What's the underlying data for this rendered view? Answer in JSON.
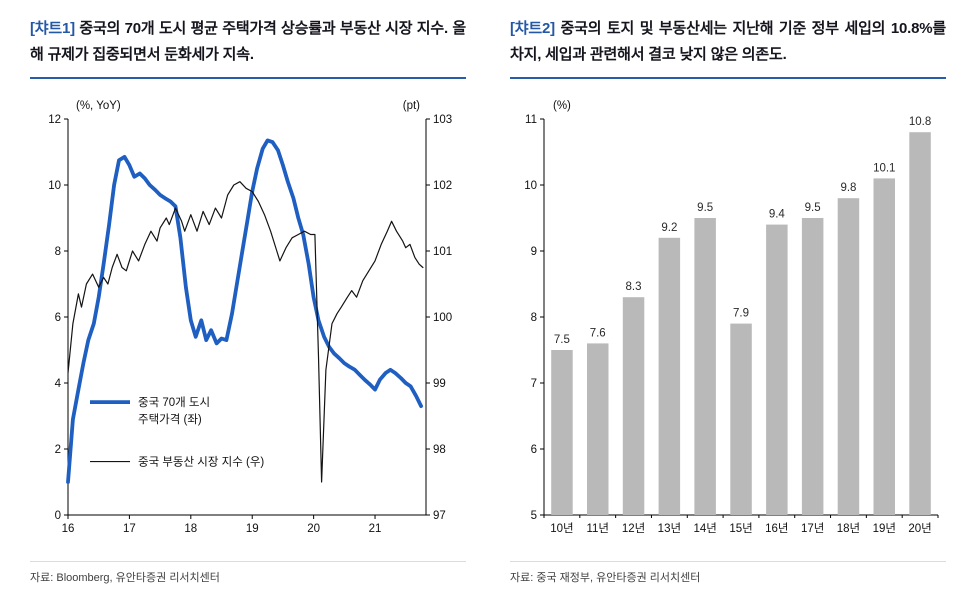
{
  "panels": [
    {
      "title_prefix": "[챠트1]",
      "title_rest": " 중국의 70개 도시 평균 주택가격 상승률과 부동산 시장 지수. 올해 규제가 집중되면서 둔화세가 지속.",
      "source": "자료: Bloomberg, 유안타증권 리서치센터"
    },
    {
      "title_prefix": "[챠트2]",
      "title_rest": " 중국의 토지 및 부동산세는 지난해 기준 정부 세입의 10.8%를 차지, 세입과 관련해서 결코 낮지 않은 의존도.",
      "source": "자료: 중국 재정부, 유안타증권 리서치센터"
    }
  ],
  "chart_data": [
    {
      "type": "line",
      "left_axis_label": "(%, YoY)",
      "right_axis_label": "(pt)",
      "x_range": [
        16,
        21.83
      ],
      "x_ticks": [
        16,
        17,
        18,
        19,
        20,
        21
      ],
      "left_ylim": [
        0,
        12
      ],
      "left_yticks": [
        0,
        2,
        4,
        6,
        8,
        10,
        12
      ],
      "right_ylim": [
        97,
        103
      ],
      "right_yticks": [
        97,
        98,
        99,
        100,
        101,
        102,
        103
      ],
      "series": [
        {
          "id": "house-price",
          "name": "중국 70개 도시 주택가격 (좌)",
          "axis": "left",
          "color": "#1e5fc1",
          "width": 3.8,
          "points": [
            [
              16.0,
              1.0
            ],
            [
              16.08,
              2.9
            ],
            [
              16.17,
              3.8
            ],
            [
              16.25,
              4.6
            ],
            [
              16.33,
              5.3
            ],
            [
              16.42,
              5.8
            ],
            [
              16.5,
              6.6
            ],
            [
              16.58,
              7.6
            ],
            [
              16.67,
              8.8
            ],
            [
              16.75,
              10.0
            ],
            [
              16.83,
              10.75
            ],
            [
              16.92,
              10.85
            ],
            [
              17.0,
              10.6
            ],
            [
              17.08,
              10.25
            ],
            [
              17.17,
              10.35
            ],
            [
              17.25,
              10.2
            ],
            [
              17.33,
              10.0
            ],
            [
              17.42,
              9.85
            ],
            [
              17.5,
              9.7
            ],
            [
              17.58,
              9.6
            ],
            [
              17.67,
              9.5
            ],
            [
              17.75,
              9.35
            ],
            [
              17.83,
              8.4
            ],
            [
              17.92,
              6.9
            ],
            [
              18.0,
              5.9
            ],
            [
              18.08,
              5.4
            ],
            [
              18.17,
              5.9
            ],
            [
              18.25,
              5.3
            ],
            [
              18.33,
              5.6
            ],
            [
              18.42,
              5.2
            ],
            [
              18.5,
              5.35
            ],
            [
              18.58,
              5.3
            ],
            [
              18.67,
              6.1
            ],
            [
              18.75,
              7.0
            ],
            [
              18.83,
              7.9
            ],
            [
              18.92,
              8.9
            ],
            [
              19.0,
              9.8
            ],
            [
              19.08,
              10.5
            ],
            [
              19.17,
              11.1
            ],
            [
              19.25,
              11.35
            ],
            [
              19.33,
              11.3
            ],
            [
              19.42,
              11.05
            ],
            [
              19.5,
              10.6
            ],
            [
              19.58,
              10.1
            ],
            [
              19.67,
              9.6
            ],
            [
              19.75,
              9.0
            ],
            [
              19.83,
              8.5
            ],
            [
              19.92,
              7.6
            ],
            [
              20.0,
              6.6
            ],
            [
              20.08,
              5.9
            ],
            [
              20.17,
              5.4
            ],
            [
              20.25,
              5.1
            ],
            [
              20.33,
              4.9
            ],
            [
              20.42,
              4.75
            ],
            [
              20.5,
              4.6
            ],
            [
              20.58,
              4.5
            ],
            [
              20.67,
              4.4
            ],
            [
              20.75,
              4.25
            ],
            [
              20.83,
              4.1
            ],
            [
              20.92,
              3.95
            ],
            [
              21.0,
              3.8
            ],
            [
              21.08,
              4.1
            ],
            [
              21.17,
              4.3
            ],
            [
              21.25,
              4.4
            ],
            [
              21.33,
              4.3
            ],
            [
              21.42,
              4.15
            ],
            [
              21.5,
              4.0
            ],
            [
              21.58,
              3.9
            ],
            [
              21.67,
              3.6
            ],
            [
              21.75,
              3.3
            ]
          ]
        },
        {
          "id": "property-index",
          "name": "중국 부동산 시장 지수 (우)",
          "axis": "right",
          "color": "#141414",
          "width": 1.2,
          "points": [
            [
              16.0,
              99.15
            ],
            [
              16.08,
              99.9
            ],
            [
              16.17,
              100.35
            ],
            [
              16.22,
              100.15
            ],
            [
              16.3,
              100.5
            ],
            [
              16.4,
              100.65
            ],
            [
              16.5,
              100.45
            ],
            [
              16.58,
              100.6
            ],
            [
              16.65,
              100.5
            ],
            [
              16.72,
              100.75
            ],
            [
              16.8,
              100.95
            ],
            [
              16.88,
              100.75
            ],
            [
              16.95,
              100.7
            ],
            [
              17.05,
              101.0
            ],
            [
              17.15,
              100.85
            ],
            [
              17.25,
              101.1
            ],
            [
              17.35,
              101.3
            ],
            [
              17.45,
              101.15
            ],
            [
              17.5,
              101.35
            ],
            [
              17.6,
              101.5
            ],
            [
              17.65,
              101.4
            ],
            [
              17.75,
              101.65
            ],
            [
              17.85,
              101.45
            ],
            [
              17.9,
              101.3
            ],
            [
              18.0,
              101.55
            ],
            [
              18.1,
              101.3
            ],
            [
              18.2,
              101.6
            ],
            [
              18.3,
              101.4
            ],
            [
              18.4,
              101.65
            ],
            [
              18.5,
              101.5
            ],
            [
              18.6,
              101.85
            ],
            [
              18.7,
              102.0
            ],
            [
              18.8,
              102.05
            ],
            [
              18.9,
              101.95
            ],
            [
              19.0,
              101.9
            ],
            [
              19.1,
              101.75
            ],
            [
              19.2,
              101.55
            ],
            [
              19.3,
              101.3
            ],
            [
              19.4,
              101.0
            ],
            [
              19.45,
              100.85
            ],
            [
              19.55,
              101.05
            ],
            [
              19.65,
              101.2
            ],
            [
              19.75,
              101.25
            ],
            [
              19.85,
              101.3
            ],
            [
              19.95,
              101.25
            ],
            [
              20.02,
              101.25
            ],
            [
              20.08,
              99.4
            ],
            [
              20.13,
              97.5
            ],
            [
              20.2,
              99.2
            ],
            [
              20.3,
              99.9
            ],
            [
              20.38,
              100.05
            ],
            [
              20.45,
              100.15
            ],
            [
              20.55,
              100.3
            ],
            [
              20.62,
              100.4
            ],
            [
              20.7,
              100.3
            ],
            [
              20.8,
              100.55
            ],
            [
              20.9,
              100.7
            ],
            [
              21.0,
              100.85
            ],
            [
              21.1,
              101.1
            ],
            [
              21.2,
              101.3
            ],
            [
              21.27,
              101.45
            ],
            [
              21.35,
              101.3
            ],
            [
              21.45,
              101.15
            ],
            [
              21.5,
              101.05
            ],
            [
              21.57,
              101.1
            ],
            [
              21.65,
              100.9
            ],
            [
              21.72,
              100.8
            ],
            [
              21.78,
              100.75
            ]
          ]
        }
      ],
      "legend": [
        {
          "series": 0,
          "label_lines": [
            "중국 70개 도시",
            "주택가격 (좌)"
          ]
        },
        {
          "series": 1,
          "label_lines": [
            "중국 부동산 시장 지수 (우)"
          ]
        }
      ]
    },
    {
      "type": "bar",
      "axis_label": "(%)",
      "categories": [
        "10년",
        "11년",
        "12년",
        "13년",
        "14년",
        "15년",
        "16년",
        "17년",
        "18년",
        "19년",
        "20년"
      ],
      "values": [
        7.5,
        7.6,
        8.3,
        9.2,
        9.5,
        7.9,
        9.4,
        9.5,
        9.8,
        10.1,
        10.8
      ],
      "ylim": [
        5,
        11
      ],
      "yticks": [
        5,
        6,
        7,
        8,
        9,
        10,
        11
      ],
      "bar_color": "#b9b9b9"
    }
  ]
}
